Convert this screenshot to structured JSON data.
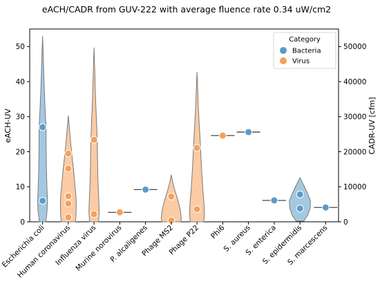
{
  "chart_data": {
    "type": "violin",
    "title": "eACH/CADR from GUV-222 with average fluence rate 0.34 uW/cm2",
    "ylabel": "eACH-UV",
    "ylabel_right": "CADR-UV [cfm]",
    "ylim": [
      0,
      55
    ],
    "y_ticks": [
      0,
      10,
      20,
      30,
      40,
      50
    ],
    "ylim_right": [
      0,
      55000
    ],
    "y_ticks_right": [
      0,
      10000,
      20000,
      30000,
      40000,
      50000
    ],
    "legend": {
      "title": "Category",
      "position": "top-right",
      "entries": [
        {
          "label": "Bacteria",
          "color": "#5b9bc8"
        },
        {
          "label": "Virus",
          "color": "#f5a05a"
        }
      ]
    },
    "categories": [
      "Escherichia coli",
      "Human coronavirus",
      "Influenza virus",
      "Murine norovirus",
      "P. alcaligenes",
      "Phage MS2",
      "Phage P22",
      "Phi6",
      "S. aureus",
      "S. enterica",
      "S. epidermidis",
      "S. marcescens"
    ],
    "series": [
      {
        "name": "Bacteria",
        "color": "#5b9bc8",
        "points": [
          {
            "category": "Escherichia coli",
            "values": [
              27,
              6
            ]
          },
          {
            "category": "P. alcaligenes",
            "values": [
              9.2
            ]
          },
          {
            "category": "S. aureus",
            "values": [
              25.6
            ]
          },
          {
            "category": "S. enterica",
            "values": [
              6.1
            ]
          },
          {
            "category": "S. epidermidis",
            "values": [
              7.8,
              3.8
            ]
          },
          {
            "category": "S. marcescens",
            "values": [
              4.1
            ]
          }
        ]
      },
      {
        "name": "Virus",
        "color": "#f5a05a",
        "points": [
          {
            "category": "Human coronavirus",
            "values": [
              19.5,
              15.2,
              7.3,
              5.2,
              1.3
            ]
          },
          {
            "category": "Influenza virus",
            "values": [
              23.4,
              2.2
            ]
          },
          {
            "category": "Murine norovirus",
            "values": [
              2.7
            ]
          },
          {
            "category": "Phage MS2",
            "values": [
              7.2,
              0.4
            ]
          },
          {
            "category": "Phage P22",
            "values": [
              21.1,
              3.6
            ]
          },
          {
            "category": "Phi6",
            "values": [
              24.6
            ]
          }
        ]
      }
    ],
    "violins": [
      {
        "category": "Escherichia coli",
        "group": "Bacteria",
        "range": [
          0,
          53
        ],
        "profile": [
          [
            0,
            0.25
          ],
          [
            3,
            0.35
          ],
          [
            6,
            0.38
          ],
          [
            10,
            0.34
          ],
          [
            15,
            0.3
          ],
          [
            20,
            0.28
          ],
          [
            27,
            0.27
          ],
          [
            32,
            0.2
          ],
          [
            38,
            0.13
          ],
          [
            44,
            0.08
          ],
          [
            49,
            0.04
          ],
          [
            53,
            0
          ]
        ]
      },
      {
        "category": "Human coronavirus",
        "group": "Virus",
        "range": [
          0,
          30.3
        ],
        "profile": [
          [
            0,
            0.55
          ],
          [
            2,
            0.6
          ],
          [
            5,
            0.62
          ],
          [
            8,
            0.58
          ],
          [
            11,
            0.5
          ],
          [
            15,
            0.4
          ],
          [
            19,
            0.28
          ],
          [
            23,
            0.17
          ],
          [
            26.5,
            0.09
          ],
          [
            30.3,
            0
          ]
        ]
      },
      {
        "category": "Influenza virus",
        "group": "Virus",
        "range": [
          0,
          49.7
        ],
        "profile": [
          [
            0,
            0.35
          ],
          [
            3,
            0.4
          ],
          [
            7,
            0.36
          ],
          [
            12,
            0.3
          ],
          [
            18,
            0.27
          ],
          [
            23,
            0.25
          ],
          [
            28,
            0.2
          ],
          [
            34,
            0.13
          ],
          [
            40,
            0.08
          ],
          [
            45,
            0.04
          ],
          [
            49.7,
            0
          ]
        ]
      },
      {
        "category": "Phage MS2",
        "group": "Virus",
        "range": [
          0,
          13.4
        ],
        "profile": [
          [
            0,
            0.72
          ],
          [
            1,
            0.78
          ],
          [
            3,
            0.72
          ],
          [
            5,
            0.6
          ],
          [
            7,
            0.45
          ],
          [
            9,
            0.28
          ],
          [
            11,
            0.13
          ],
          [
            13.4,
            0
          ]
        ]
      },
      {
        "category": "Phage P22",
        "group": "Virus",
        "range": [
          0,
          42.8
        ],
        "profile": [
          [
            0,
            0.52
          ],
          [
            2,
            0.58
          ],
          [
            5,
            0.55
          ],
          [
            9,
            0.46
          ],
          [
            14,
            0.37
          ],
          [
            19,
            0.3
          ],
          [
            23,
            0.25
          ],
          [
            28,
            0.17
          ],
          [
            33,
            0.1
          ],
          [
            38,
            0.05
          ],
          [
            42.8,
            0
          ]
        ]
      },
      {
        "category": "S. epidermidis",
        "group": "Bacteria",
        "range": [
          0.2,
          12.6
        ],
        "profile": [
          [
            0.2,
            0.3
          ],
          [
            2,
            0.62
          ],
          [
            4,
            0.8
          ],
          [
            6,
            0.82
          ],
          [
            8,
            0.6
          ],
          [
            10,
            0.35
          ],
          [
            12.6,
            0
          ]
        ]
      }
    ],
    "single_lines": [
      {
        "category": "Murine norovirus",
        "value": 2.7
      },
      {
        "category": "P. alcaligenes",
        "value": 9.2
      },
      {
        "category": "Phi6",
        "value": 24.6
      },
      {
        "category": "S. aureus",
        "value": 25.6
      },
      {
        "category": "S. enterica",
        "value": 6.1
      },
      {
        "category": "S. marcescens",
        "value": 4.1
      }
    ],
    "grid": false
  }
}
